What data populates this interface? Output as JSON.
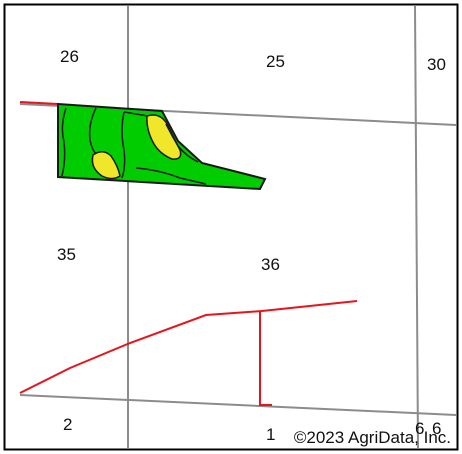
{
  "map": {
    "sections": {
      "s26": "26",
      "s25": "25",
      "s30": "30",
      "s35": "35",
      "s36": "36",
      "s2": "2",
      "s1": "1",
      "s6a": "6",
      "s6b": "6"
    },
    "copyright": "©2023 AgriData, Inc."
  },
  "colors": {
    "border": "#000000",
    "section_line": "#8c8c8c",
    "road": "#e8141b",
    "field_green": "#00cc00",
    "field_yellow": "#f0e62a",
    "field_outline": "#1a1a1a"
  }
}
